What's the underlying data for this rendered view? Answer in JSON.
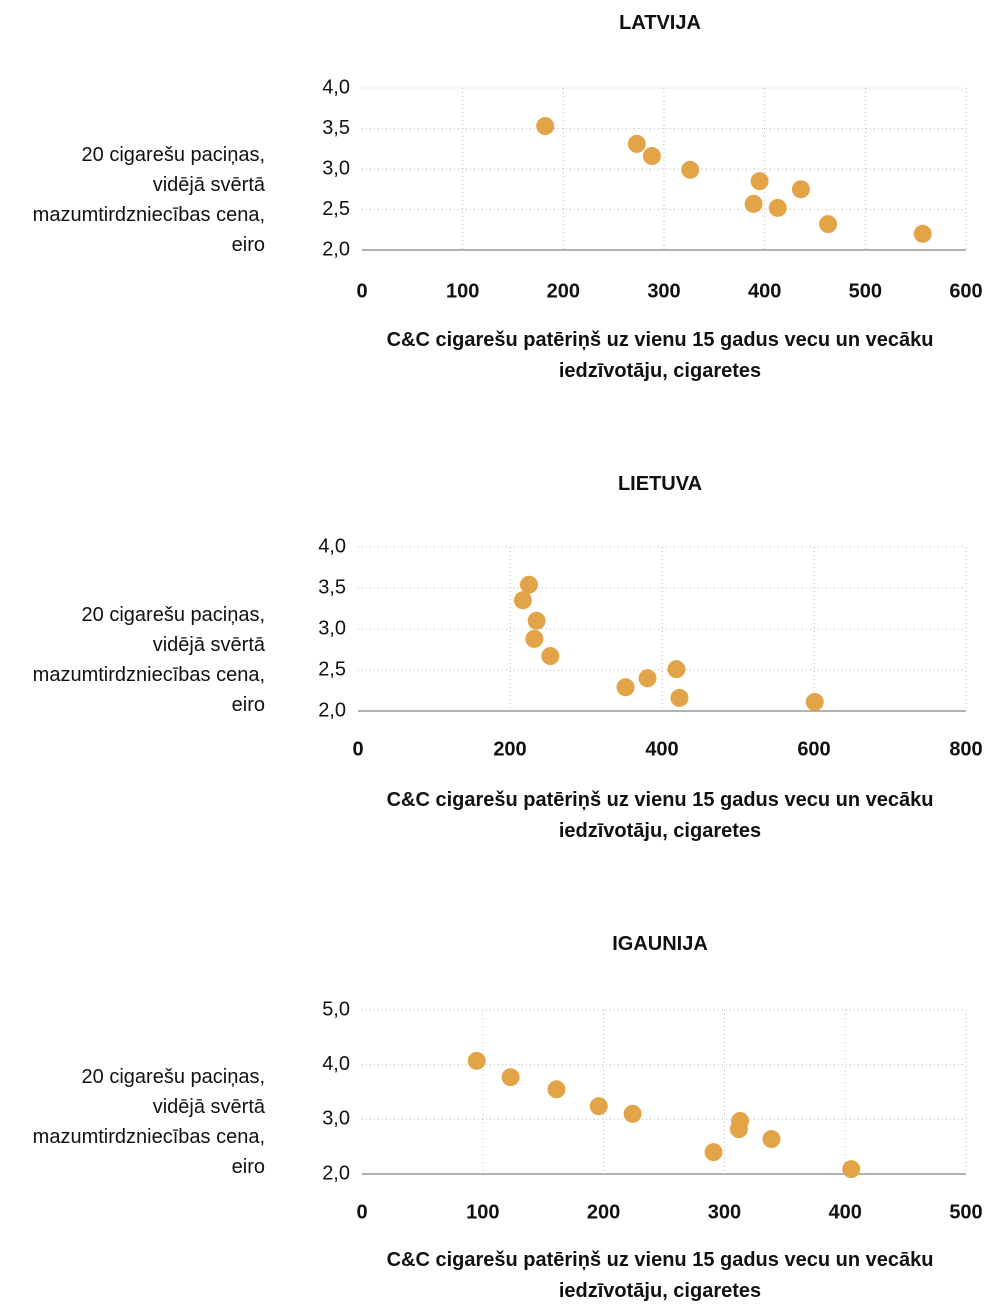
{
  "chart_data": [
    {
      "type": "scatter",
      "title": "LATVIJA",
      "x_label": "C&C cigarešu patēriņš uz vienu 15 gadus vecu un vecāku iedzīvotāju, cigaretes",
      "y_label": "20 cigarešu paciņas, vidējā svērtā mazumtirdzniecības cena, eiro",
      "color": "#e3a448",
      "grid": true,
      "x": [
        182,
        273,
        288,
        326,
        395,
        389,
        413,
        436,
        463,
        557
      ],
      "values": [
        3.53,
        3.31,
        3.16,
        2.99,
        2.85,
        2.57,
        2.52,
        2.75,
        2.32,
        2.2
      ],
      "xlim": [
        0,
        600
      ],
      "xticks": [
        0,
        100,
        200,
        300,
        400,
        500,
        600
      ],
      "ylim": [
        2,
        4
      ],
      "yticks": [
        {
          "value": 2,
          "label": "2,0"
        },
        {
          "value": 2.5,
          "label": "2,5"
        },
        {
          "value": 3,
          "label": "3,0"
        },
        {
          "value": 3.5,
          "label": "3,5"
        },
        {
          "value": 4,
          "label": "4,0"
        }
      ]
    },
    {
      "type": "scatter",
      "title": "LIETUVA",
      "x_label": "C&C cigarešu patēriņš uz vienu 15 gadus vecu un vecāku iedzīvotāju, cigaretes",
      "y_label": "20 cigarešu paciņas, vidējā svērtā mazumtirdzniecības cena, eiro",
      "color": "#e3a448",
      "grid": true,
      "x": [
        225,
        217,
        235,
        232,
        253,
        352,
        381,
        419,
        423,
        601
      ],
      "values": [
        3.54,
        3.35,
        3.1,
        2.88,
        2.67,
        2.29,
        2.4,
        2.51,
        2.16,
        2.11
      ],
      "xlim": [
        0,
        800
      ],
      "xticks": [
        0,
        200,
        400,
        600,
        800
      ],
      "ylim": [
        2,
        4
      ],
      "yticks": [
        {
          "value": 2,
          "label": "2,0"
        },
        {
          "value": 2.5,
          "label": "2,5"
        },
        {
          "value": 3,
          "label": "3,0"
        },
        {
          "value": 3.5,
          "label": "3,5"
        },
        {
          "value": 4,
          "label": "4,0"
        }
      ]
    },
    {
      "type": "scatter",
      "title": "IGAUNIJA",
      "x_label": "C&C cigarešu patēriņš uz vienu 15 gadus vecu un vecāku iedzīvotāju, cigaretes",
      "y_label": "20 cigarešu paciņas, vidējā svērtā mazumtirdzniecības cena, eiro",
      "color": "#e3a448",
      "grid": true,
      "x": [
        95,
        123,
        161,
        196,
        224,
        291,
        313,
        312,
        339,
        405
      ],
      "values": [
        4.07,
        3.77,
        3.55,
        3.24,
        3.1,
        2.4,
        2.97,
        2.82,
        2.64,
        2.09
      ],
      "xlim": [
        0,
        500
      ],
      "xticks": [
        0,
        100,
        200,
        300,
        400,
        500
      ],
      "ylim": [
        2,
        5
      ],
      "yticks": [
        {
          "value": 2,
          "label": "2,0"
        },
        {
          "value": 3,
          "label": "3,0"
        },
        {
          "value": 4,
          "label": "4,0"
        },
        {
          "value": 5,
          "label": "5,0"
        }
      ]
    }
  ]
}
